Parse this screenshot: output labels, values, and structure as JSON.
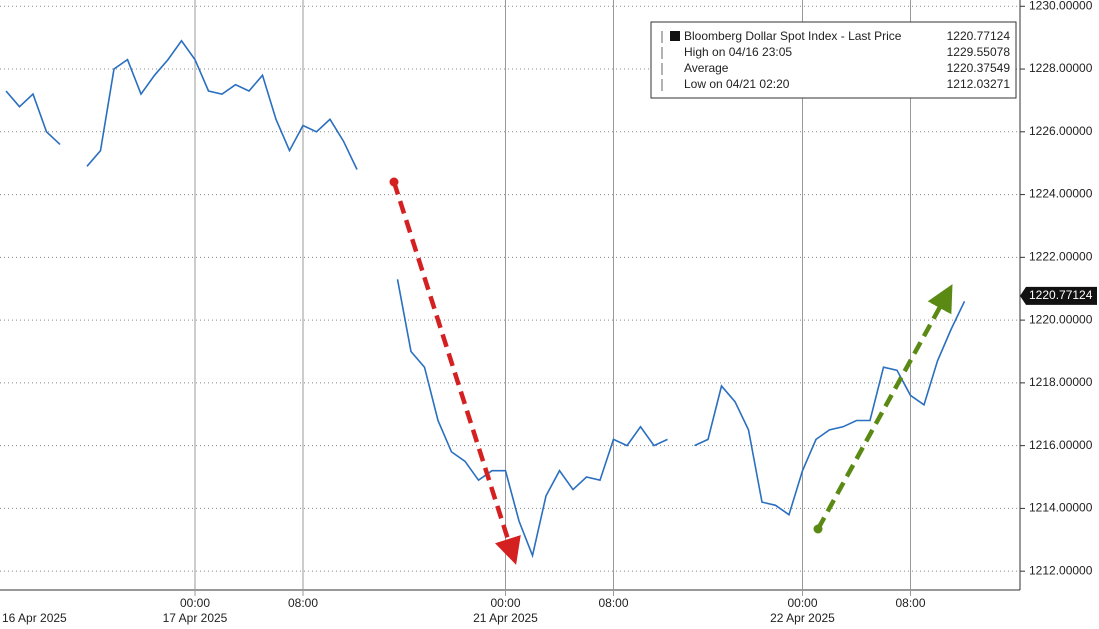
{
  "chart_data": {
    "type": "line",
    "series": [
      {
        "name": "Bloomberg Dollar Spot Index - Last Price",
        "color": "#2a6fc0",
        "values": [
          1227.3,
          1226.8,
          1227.2,
          1226.0,
          1225.6,
          null,
          1224.9,
          1225.4,
          1228.0,
          1228.3,
          1227.2,
          1227.8,
          1228.3,
          1228.9,
          1228.3,
          1227.3,
          1227.2,
          1227.5,
          1227.3,
          1227.8,
          1226.4,
          1225.4,
          1226.2,
          1226.0,
          1226.4,
          1225.7,
          1224.8,
          null,
          null,
          1221.3,
          1219.0,
          1218.5,
          1216.8,
          1215.8,
          1215.5,
          1214.9,
          1215.2,
          1215.2,
          1213.6,
          1212.5,
          1214.4,
          1215.2,
          1214.6,
          1215.0,
          1214.9,
          1216.2,
          1216.0,
          1216.6,
          1216.0,
          1216.2,
          null,
          1216.0,
          1216.2,
          1217.9,
          1217.4,
          1216.5,
          1214.2,
          1214.1,
          1213.8,
          1215.2,
          1216.2,
          1216.5,
          1216.6,
          1216.8,
          1216.8,
          1218.5,
          1218.4,
          1217.6,
          1217.3,
          1218.7,
          1219.7,
          1220.6
        ]
      }
    ],
    "categories": [
      null,
      null,
      null,
      null,
      null,
      null,
      null,
      null,
      null,
      null,
      null,
      null,
      null,
      null,
      "00:00",
      null,
      null,
      null,
      null,
      null,
      null,
      null,
      "08:00",
      null,
      null,
      null,
      null,
      null,
      null,
      null,
      null,
      null,
      null,
      null,
      null,
      null,
      null,
      "00:00",
      null,
      null,
      null,
      null,
      null,
      null,
      null,
      "08:00",
      null,
      null,
      null,
      null,
      null,
      null,
      null,
      null,
      null,
      null,
      null,
      null,
      null,
      "00:00",
      null,
      null,
      null,
      null,
      null,
      null,
      null,
      "08:00",
      null,
      null,
      null,
      null
    ],
    "date_labels": [
      {
        "value": 0,
        "label": "16 Apr 2025"
      },
      {
        "value": 14,
        "label": "17 Apr 2025"
      },
      {
        "value": 37,
        "label": "21 Apr 2025"
      },
      {
        "value": 59,
        "label": "22 Apr 2025"
      }
    ],
    "ylim": [
      1211.4,
      1230.2
    ],
    "yticks": [
      {
        "value": 1212,
        "label": "1212.00000"
      },
      {
        "value": 1214,
        "label": "1214.00000"
      },
      {
        "value": 1216,
        "label": "1216.00000"
      },
      {
        "value": 1218,
        "label": "1218.00000"
      },
      {
        "value": 1220,
        "label": "1220.00000"
      },
      {
        "value": 1222,
        "label": "1222.00000"
      },
      {
        "value": 1224,
        "label": "1224.00000"
      },
      {
        "value": 1226,
        "label": "1226.00000"
      },
      {
        "value": 1228,
        "label": "1228.00000"
      },
      {
        "value": 1230,
        "label": "1230.00000"
      }
    ],
    "last_value": {
      "value": 1220.77124,
      "label": "1220.77124"
    },
    "legend_rows": [
      [
        "Bloomberg Dollar Spot Index - Last Price",
        "1220.77124"
      ],
      [
        "High on 04/16 23:05",
        "1229.55078"
      ],
      [
        "Average",
        "1220.37549"
      ],
      [
        "Low on 04/21 02:20",
        "1212.03271"
      ]
    ],
    "grid": true
  }
}
